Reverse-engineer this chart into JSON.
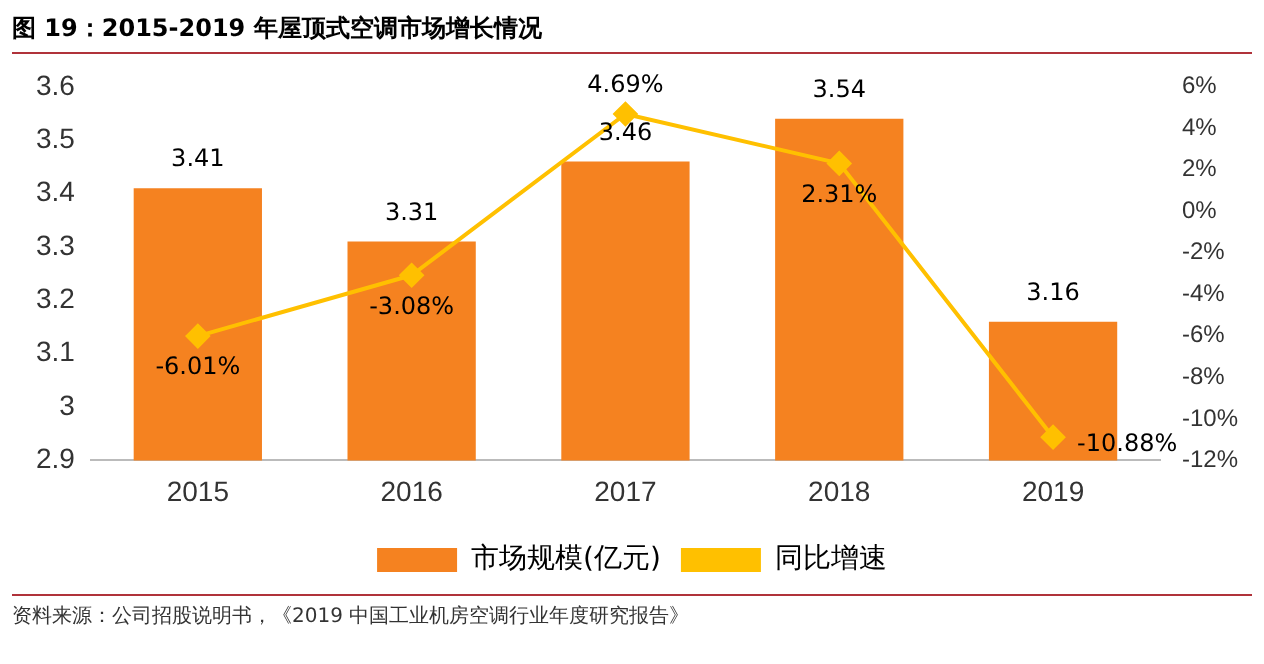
{
  "chart_data": {
    "type": "bar",
    "title": "图 19：2015-2019 年屋顶式空调市场增长情况",
    "categories": [
      "2015",
      "2016",
      "2017",
      "2018",
      "2019"
    ],
    "series": [
      {
        "name": "市场规模(亿元)",
        "color": "#f58220",
        "values": [
          3.41,
          3.31,
          3.46,
          3.54,
          3.16
        ],
        "value_labels": [
          "3.41",
          "3.31",
          "3.46",
          "3.54",
          "3.16"
        ]
      },
      {
        "name": "同比增速",
        "type": "line",
        "axis": "y2",
        "color": "#ffc000",
        "values": [
          -6.01,
          -3.08,
          4.69,
          2.31,
          -10.88
        ],
        "value_labels": [
          "-6.01%",
          "-3.08%",
          "4.69%",
          "2.31%",
          "-10.88%"
        ]
      }
    ],
    "ylim": [
      2.9,
      3.6
    ],
    "yticks": [
      2.9,
      3,
      3.1,
      3.2,
      3.3,
      3.4,
      3.5,
      3.6
    ],
    "y2lim": [
      -12,
      6
    ],
    "y2ticks": [
      {
        "value": 6,
        "label": "6%"
      },
      {
        "value": 4,
        "label": "4%"
      },
      {
        "value": 2,
        "label": "2%"
      },
      {
        "value": 0,
        "label": "0%"
      },
      {
        "value": -2,
        "label": "-2%"
      },
      {
        "value": -4,
        "label": "-4%"
      },
      {
        "value": -6,
        "label": "-6%"
      },
      {
        "value": -8,
        "label": "-8%"
      },
      {
        "value": -10,
        "label": "-10%"
      },
      {
        "value": -12,
        "label": "-12%"
      }
    ],
    "grid": false,
    "legend": "bottom",
    "marker": "diamond",
    "line_style": "solid",
    "annotations": [
      "资料来源：公司招股说明书，《2019 中国工业机房空调行业年度研究报告》"
    ]
  }
}
